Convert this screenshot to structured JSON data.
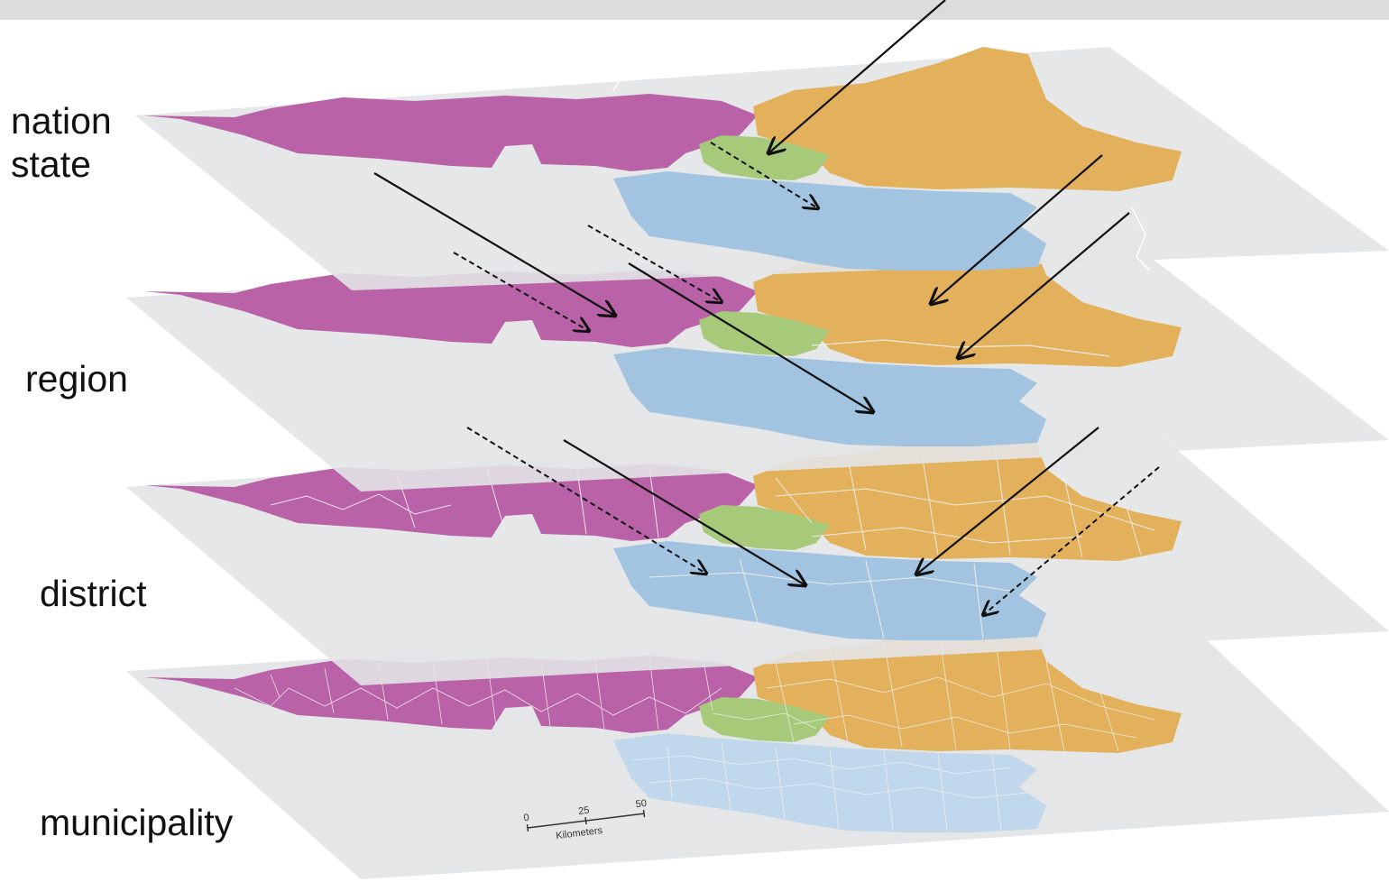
{
  "layers": [
    {
      "id": "nation-state",
      "label": "nation\nstate"
    },
    {
      "id": "region",
      "label": "region"
    },
    {
      "id": "district",
      "label": "district"
    },
    {
      "id": "municipality",
      "label": "municipality"
    }
  ],
  "colors": {
    "plane": "#e3e4e6",
    "purple": "#b962a8",
    "orange": "#e3b15c",
    "green": "#a6c97a",
    "blue": "#a3c4e0",
    "boundary": "#ffffff",
    "arrow": "#111111"
  },
  "scale_bar": {
    "ticks": [
      "0",
      "25",
      "50"
    ],
    "unit": "Kilometers"
  }
}
